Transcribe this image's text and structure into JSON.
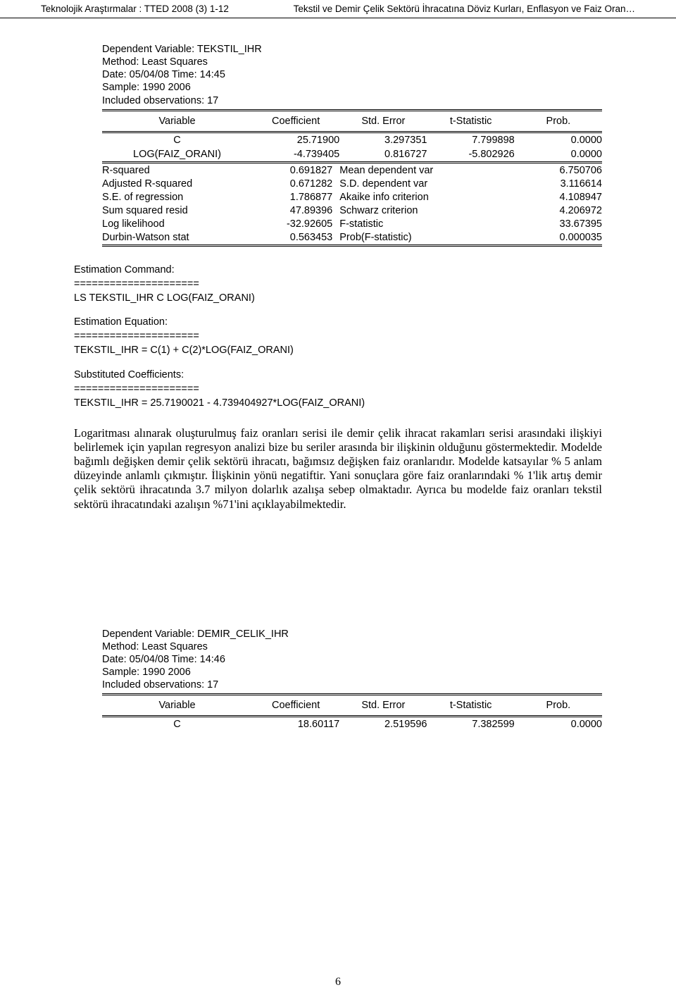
{
  "header": {
    "left": "Teknolojik Araştırmalar : TTED  2008 (3) 1-12",
    "right": "Tekstil ve Demir Çelik Sektörü İhracatına Döviz Kurları, Enflasyon ve Faiz Oran…"
  },
  "reg1": {
    "dep_var": "Dependent Variable: TEKSTIL_IHR",
    "method": "Method: Least Squares",
    "date": "Date: 05/04/08   Time: 14:45",
    "sample": "Sample: 1990 2006",
    "included": "Included observations: 17",
    "columns": {
      "variable": "Variable",
      "coefficient": "Coefficient",
      "std_error": "Std. Error",
      "t_stat": "t-Statistic",
      "prob": "Prob."
    },
    "rows": [
      {
        "var": "C",
        "coef": "25.71900",
        "se": "3.297351",
        "t": "7.799898",
        "p": "0.0000"
      },
      {
        "var": "LOG(FAIZ_ORANI)",
        "coef": "-4.739405",
        "se": "0.816727",
        "t": "-5.802926",
        "p": "0.0000"
      }
    ],
    "stats": [
      {
        "l": "R-squared",
        "lv": "0.691827",
        "r": "Mean dependent var",
        "rv": "6.750706"
      },
      {
        "l": "Adjusted R-squared",
        "lv": "0.671282",
        "r": "S.D. dependent var",
        "rv": "3.116614"
      },
      {
        "l": "S.E. of regression",
        "lv": "1.786877",
        "r": "Akaike info criterion",
        "rv": "4.108947"
      },
      {
        "l": "Sum squared resid",
        "lv": "47.89396",
        "r": "Schwarz criterion",
        "rv": "4.206972"
      },
      {
        "l": "Log likelihood",
        "lv": "-32.92605",
        "r": "F-statistic",
        "rv": "33.67395"
      },
      {
        "l": "Durbin-Watson stat",
        "lv": "0.563453",
        "r": "Prob(F-statistic)",
        "rv": "0.000035"
      }
    ]
  },
  "est": {
    "cmd_label": "Estimation Command:",
    "sep": "=====================",
    "cmd": "LS TEKSTIL_IHR C LOG(FAIZ_ORANI)",
    "eq_label": "Estimation Equation:",
    "eq": "TEKSTIL_IHR = C(1) + C(2)*LOG(FAIZ_ORANI)",
    "sub_label": "Substituted Coefficients:",
    "sub": "TEKSTIL_IHR = 25.7190021 - 4.739404927*LOG(FAIZ_ORANI)"
  },
  "paragraph": "Logaritması alınarak oluşturulmuş faiz oranları serisi ile demir çelik ihracat rakamları serisi arasındaki ilişkiyi belirlemek için yapılan regresyon analizi bize bu seriler arasında bir ilişkinin olduğunu göstermektedir. Modelde bağımlı değişken demir çelik sektörü ihracatı, bağımsız değişken faiz oranlarıdır. Modelde katsayılar % 5 anlam düzeyinde anlamlı çıkmıştır. İlişkinin yönü negatiftir. Yani sonuçlara göre faiz oranlarındaki % 1'lik artış demir çelik sektörü ihracatında 3.7 milyon dolarlık azalışa sebep olmaktadır. Ayrıca bu modelde faiz oranları tekstil sektörü ihracatındaki azalışın %71'ini açıklayabilmektedir.",
  "reg2": {
    "dep_var": "Dependent Variable: DEMIR_CELIK_IHR",
    "method": "Method: Least Squares",
    "date": "Date: 05/04/08   Time: 14:46",
    "sample": "Sample: 1990 2006",
    "included": "Included observations: 17",
    "columns": {
      "variable": "Variable",
      "coefficient": "Coefficient",
      "std_error": "Std. Error",
      "t_stat": "t-Statistic",
      "prob": "Prob."
    },
    "rows": [
      {
        "var": "C",
        "coef": "18.60117",
        "se": "2.519596",
        "t": "7.382599",
        "p": "0.0000"
      }
    ]
  },
  "page_number": "6"
}
